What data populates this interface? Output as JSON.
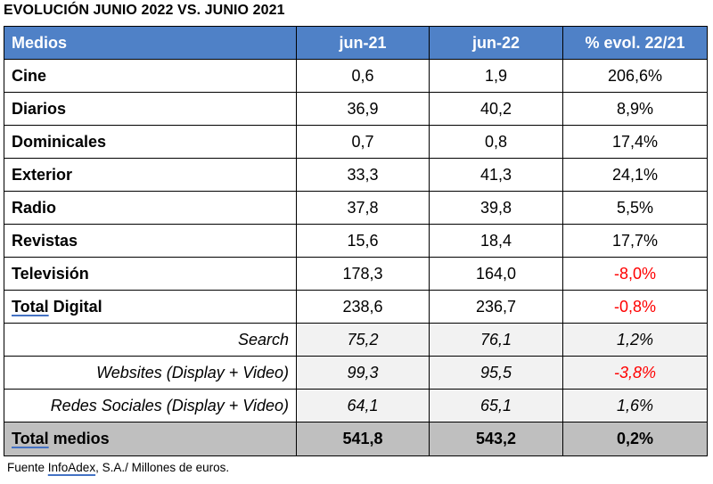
{
  "title": "EVOLUCIÓN JUNIO 2022 VS. JUNIO 2021",
  "header": [
    "Medios",
    "jun-21",
    "jun-22",
    "% evol. 22/21"
  ],
  "rows": [
    {
      "label": "Cine",
      "jun21": "0,6",
      "jun22": "1,9",
      "evol": "206,6%"
    },
    {
      "label": "Diarios",
      "jun21": "36,9",
      "jun22": "40,2",
      "evol": "8,9%"
    },
    {
      "label": "Dominicales",
      "jun21": "0,7",
      "jun22": "0,8",
      "evol": "17,4%"
    },
    {
      "label": "Exterior",
      "jun21": "33,3",
      "jun22": "41,3",
      "evol": "24,1%"
    },
    {
      "label": "Radio",
      "jun21": "37,8",
      "jun22": "39,8",
      "evol": "5,5%"
    },
    {
      "label": "Revistas",
      "jun21": "15,6",
      "jun22": "18,4",
      "evol": "17,7%"
    },
    {
      "label": "Televisión",
      "jun21": "178,3",
      "jun22": "164,0",
      "evol": "-8,0%"
    },
    {
      "label_a": "Total",
      "label_b": " Digital",
      "jun21": "238,6",
      "jun22": "236,7",
      "evol": "-0,8%"
    }
  ],
  "digital_rows": [
    {
      "label": "Search",
      "jun21": "75,2",
      "jun22": "76,1",
      "evol": "1,2%"
    },
    {
      "label": "Websites (Display + Video)",
      "jun21": "99,3",
      "jun22": "95,5",
      "evol": "-3,8%"
    },
    {
      "label": "Redes Sociales (Display + Video)",
      "jun21": "64,1",
      "jun22": "65,1",
      "evol": "1,6%"
    }
  ],
  "total": {
    "label_a": "Total",
    "label_b": " medios",
    "jun21": "541,8",
    "jun22": "543,2",
    "evol": "0,2%"
  },
  "source": {
    "a": "Fuente ",
    "b": "InfoAdex",
    "c": ", S.A./ Millones de euros."
  },
  "colors": {
    "header_bg": "#4f81c7",
    "negative": "#ff0000",
    "total_bg": "#bfbfbf"
  }
}
